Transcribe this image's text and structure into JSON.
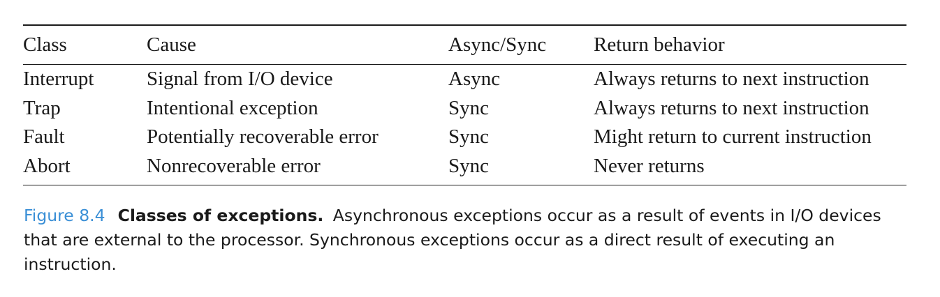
{
  "table": {
    "headers": [
      "Class",
      "Cause",
      "Async/Sync",
      "Return behavior"
    ],
    "rows": [
      [
        "Interrupt",
        "Signal from I/O device",
        "Async",
        "Always returns to next instruction"
      ],
      [
        "Trap",
        "Intentional exception",
        "Sync",
        "Always returns to next instruction"
      ],
      [
        "Fault",
        "Potentially recoverable error",
        "Sync",
        "Might return to current instruction"
      ],
      [
        "Abort",
        "Nonrecoverable error",
        "Sync",
        "Never returns"
      ]
    ]
  },
  "caption": {
    "label": "Figure 8.4",
    "title": "Classes of exceptions.",
    "text": "Asynchronous exceptions occur as a result of events in I/O devices that are external to the processor. Synchronous exceptions occur as a direct result of executing an instruction.",
    "label_color": "#3a8fd6"
  }
}
